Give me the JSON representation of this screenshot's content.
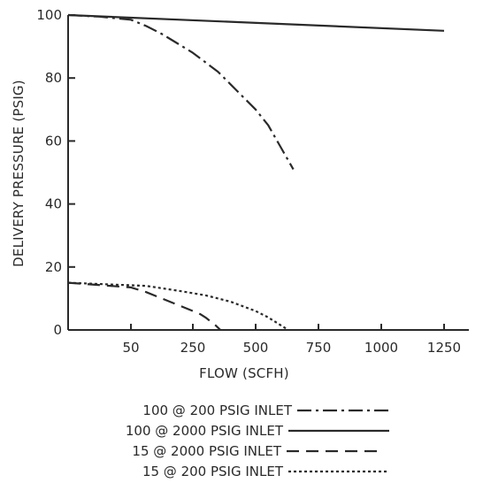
{
  "chart_data": {
    "type": "line",
    "title": "",
    "xlabel": "FLOW (SCFH)",
    "ylabel": "DELIVERY PRESSURE (PSIG)",
    "x_ticks": [
      "50",
      "250",
      "500",
      "750",
      "1000",
      "1250"
    ],
    "y_ticks": [
      "0",
      "20",
      "40",
      "60",
      "80",
      "100"
    ],
    "ylim": [
      0,
      100
    ],
    "grid": false,
    "legend_position": "bottom",
    "line_color": "#2a2a2a",
    "series": [
      {
        "name": "100 @ 200 PSIG INLET",
        "dash": "dash-dot",
        "x": [
          0,
          25,
          50,
          100,
          150,
          200,
          250,
          300,
          350,
          400,
          450,
          500,
          550,
          600,
          650
        ],
        "y": [
          100,
          99.5,
          98.5,
          96.5,
          94,
          91,
          88,
          85,
          82,
          78,
          74,
          70,
          65,
          58,
          51
        ]
      },
      {
        "name": "100 @ 2000 PSIG INLET",
        "dash": "solid",
        "x": [
          0,
          1250
        ],
        "y": [
          100,
          95
        ]
      },
      {
        "name": "15 @ 2000 PSIG INLET",
        "dash": "dashed",
        "x": [
          0,
          50,
          100,
          150,
          200,
          250,
          280,
          300,
          340,
          360
        ],
        "y": [
          15,
          13.5,
          12,
          10,
          8,
          6,
          5,
          4,
          1.5,
          0
        ]
      },
      {
        "name": "15 @ 200 PSIG INLET",
        "dash": "dotted",
        "x": [
          0,
          100,
          200,
          300,
          400,
          500,
          550,
          600,
          630
        ],
        "y": [
          15,
          14,
          12.5,
          11,
          9,
          6,
          4,
          1.5,
          0
        ]
      }
    ]
  }
}
